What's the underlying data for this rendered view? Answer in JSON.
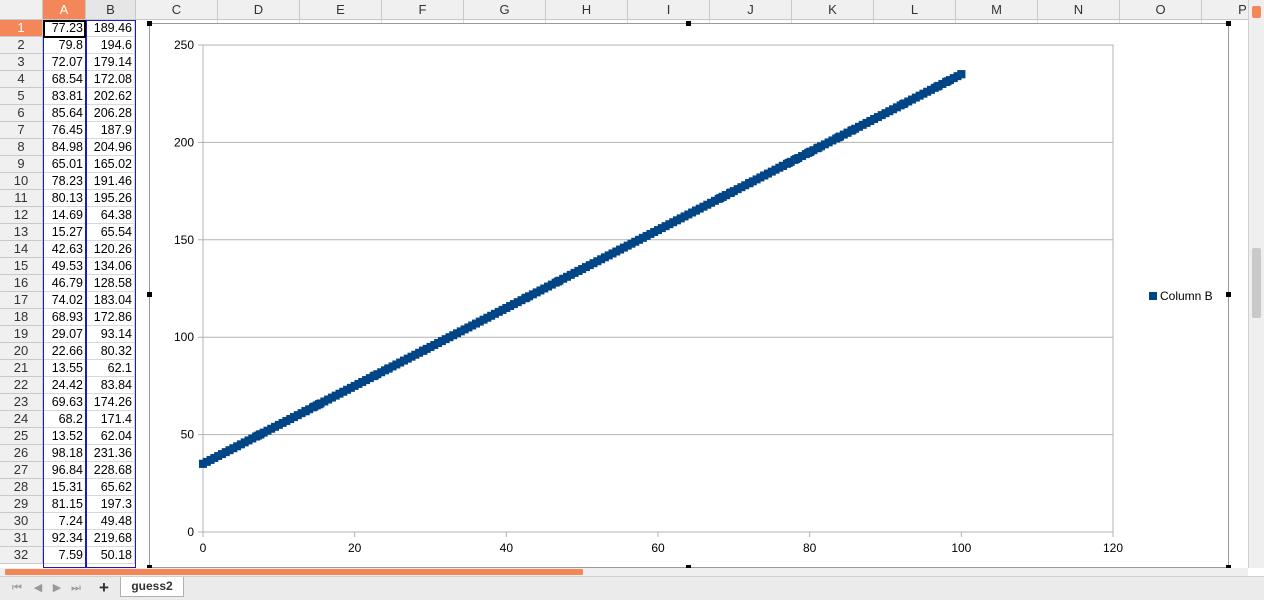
{
  "columns": [
    "A",
    "B",
    "C",
    "D",
    "E",
    "F",
    "G",
    "H",
    "I",
    "J",
    "K",
    "L",
    "M",
    "N",
    "O",
    "P"
  ],
  "rows": [
    {
      "n": "1",
      "a": "77.23",
      "b": "189.46"
    },
    {
      "n": "2",
      "a": "79.8",
      "b": "194.6"
    },
    {
      "n": "3",
      "a": "72.07",
      "b": "179.14"
    },
    {
      "n": "4",
      "a": "68.54",
      "b": "172.08"
    },
    {
      "n": "5",
      "a": "83.81",
      "b": "202.62"
    },
    {
      "n": "6",
      "a": "85.64",
      "b": "206.28"
    },
    {
      "n": "7",
      "a": "76.45",
      "b": "187.9"
    },
    {
      "n": "8",
      "a": "84.98",
      "b": "204.96"
    },
    {
      "n": "9",
      "a": "65.01",
      "b": "165.02"
    },
    {
      "n": "10",
      "a": "78.23",
      "b": "191.46"
    },
    {
      "n": "11",
      "a": "80.13",
      "b": "195.26"
    },
    {
      "n": "12",
      "a": "14.69",
      "b": "64.38"
    },
    {
      "n": "13",
      "a": "15.27",
      "b": "65.54"
    },
    {
      "n": "14",
      "a": "42.63",
      "b": "120.26"
    },
    {
      "n": "15",
      "a": "49.53",
      "b": "134.06"
    },
    {
      "n": "16",
      "a": "46.79",
      "b": "128.58"
    },
    {
      "n": "17",
      "a": "74.02",
      "b": "183.04"
    },
    {
      "n": "18",
      "a": "68.93",
      "b": "172.86"
    },
    {
      "n": "19",
      "a": "29.07",
      "b": "93.14"
    },
    {
      "n": "20",
      "a": "22.66",
      "b": "80.32"
    },
    {
      "n": "21",
      "a": "13.55",
      "b": "62.1"
    },
    {
      "n": "22",
      "a": "24.42",
      "b": "83.84"
    },
    {
      "n": "23",
      "a": "69.63",
      "b": "174.26"
    },
    {
      "n": "24",
      "a": "68.2",
      "b": "171.4"
    },
    {
      "n": "25",
      "a": "13.52",
      "b": "62.04"
    },
    {
      "n": "26",
      "a": "98.18",
      "b": "231.36"
    },
    {
      "n": "27",
      "a": "96.84",
      "b": "228.68"
    },
    {
      "n": "28",
      "a": "15.31",
      "b": "65.62"
    },
    {
      "n": "29",
      "a": "81.15",
      "b": "197.3"
    },
    {
      "n": "30",
      "a": "7.24",
      "b": "49.48"
    },
    {
      "n": "31",
      "a": "92.34",
      "b": "219.68"
    },
    {
      "n": "32",
      "a": "7.59",
      "b": "50.18"
    }
  ],
  "sheet_tab": "guess2",
  "add_sheet_label": "+",
  "nav": [
    "⏮",
    "◀",
    "▶",
    "⏭"
  ],
  "chart_data": {
    "type": "scatter",
    "series": [
      {
        "name": "Column B",
        "color": "#004586",
        "x_range": [
          0,
          100
        ],
        "relation": "y = 2x + 35",
        "points": [
          [
            0,
            35
          ],
          [
            7.24,
            49.48
          ],
          [
            7.59,
            50.18
          ],
          [
            13.52,
            62.04
          ],
          [
            13.55,
            62.1
          ],
          [
            14.69,
            64.38
          ],
          [
            15.27,
            65.54
          ],
          [
            15.31,
            65.62
          ],
          [
            22.66,
            80.32
          ],
          [
            24.42,
            83.84
          ],
          [
            29.07,
            93.14
          ],
          [
            42.63,
            120.26
          ],
          [
            46.79,
            128.58
          ],
          [
            49.53,
            134.06
          ],
          [
            65.01,
            165.02
          ],
          [
            68.2,
            171.4
          ],
          [
            68.54,
            172.08
          ],
          [
            68.93,
            172.86
          ],
          [
            69.63,
            174.26
          ],
          [
            72.07,
            179.14
          ],
          [
            74.02,
            183.04
          ],
          [
            76.45,
            187.9
          ],
          [
            77.23,
            189.46
          ],
          [
            78.23,
            191.46
          ],
          [
            79.8,
            194.6
          ],
          [
            80.13,
            195.26
          ],
          [
            81.15,
            197.3
          ],
          [
            83.81,
            202.62
          ],
          [
            84.98,
            204.96
          ],
          [
            85.64,
            206.28
          ],
          [
            92.34,
            219.68
          ],
          [
            96.84,
            228.68
          ],
          [
            98.18,
            231.36
          ],
          [
            100,
            235
          ]
        ]
      }
    ],
    "xlim": [
      0,
      120
    ],
    "ylim": [
      0,
      250
    ],
    "xticks": [
      "0",
      "20",
      "40",
      "60",
      "80",
      "100",
      "120"
    ],
    "yticks": [
      "0",
      "50",
      "100",
      "150",
      "200",
      "250"
    ],
    "grid": "horizontal",
    "legend": "right"
  }
}
